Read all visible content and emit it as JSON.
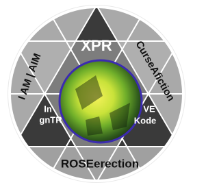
{
  "labels": {
    "top": "XPR",
    "upper_right": "CurseAfiction",
    "upper_left": "I AM | AIM",
    "bottom": "ROSEerection",
    "left_inner_1": "In",
    "left_inner_2": "gnTR",
    "right_inner_1": "VE",
    "right_inner_2": "Kode"
  }
}
